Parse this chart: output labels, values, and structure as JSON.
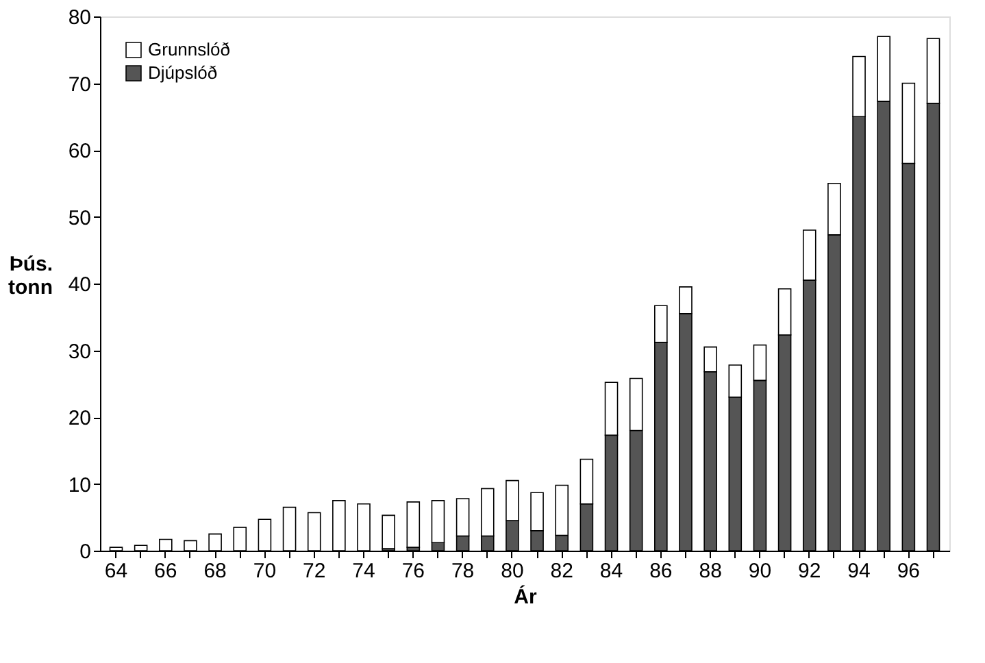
{
  "chart_data": {
    "type": "bar",
    "stacked": true,
    "xlabel": "Ár",
    "ylabel": "Þús. tonn",
    "categories": [
      "64",
      null,
      "66",
      null,
      "68",
      null,
      "70",
      null,
      "72",
      null,
      "74",
      null,
      "76",
      null,
      "78",
      null,
      "80",
      null,
      "82",
      null,
      "84",
      null,
      "86",
      null,
      "88",
      null,
      "90",
      null,
      "92",
      null,
      "94",
      null,
      "96",
      null
    ],
    "series": [
      {
        "name": "Djúpslóð",
        "color": "#555555",
        "values": [
          0,
          0,
          0,
          0,
          0,
          0,
          0,
          0,
          0,
          0,
          0,
          0.3,
          0.5,
          1.2,
          2.2,
          2.2,
          4.5,
          3,
          2.3,
          7,
          17.3,
          18,
          31.2,
          35.5,
          26.8,
          23,
          25.5,
          32.3,
          40.5,
          47.3,
          65,
          67.3,
          58,
          67
        ]
      },
      {
        "name": "Grunnslóð",
        "color": "#ffffff",
        "values": [
          0.5,
          0.8,
          1.7,
          1.5,
          2.5,
          3.5,
          4.7,
          6.5,
          5.7,
          7.5,
          7,
          5,
          6.8,
          6.3,
          5.6,
          7.1,
          6,
          5.7,
          7.5,
          6.7,
          7.9,
          7.8,
          5.5,
          4,
          3.7,
          4.8,
          5.3,
          6.9,
          7.5,
          7.7,
          9,
          9.7,
          12,
          9.7
        ]
      }
    ],
    "ylim": [
      0,
      80
    ],
    "yticks": [
      0,
      10,
      20,
      30,
      40,
      50,
      60,
      70,
      80
    ],
    "grid": false,
    "legend": "top left"
  }
}
